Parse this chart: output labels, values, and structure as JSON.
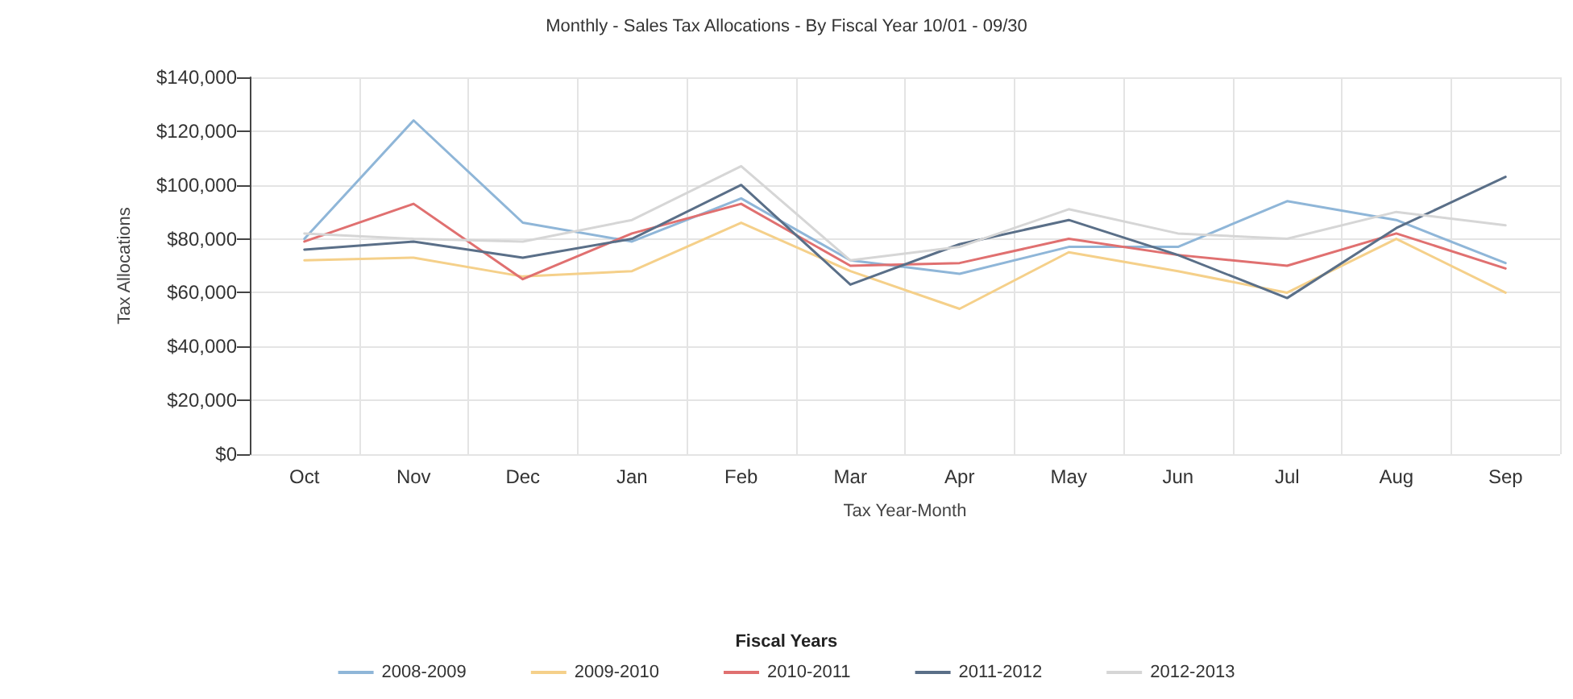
{
  "chart_data": {
    "type": "line",
    "title": "Monthly - Sales Tax Allocations - By Fiscal Year 10/01 - 09/30",
    "xlabel": "Tax Year-Month",
    "ylabel": "Tax Allocations",
    "legend_title": "Fiscal Years",
    "legend": "bottom",
    "grid": true,
    "marker": "none",
    "line_style": "solid",
    "categories": [
      "Oct",
      "Nov",
      "Dec",
      "Jan",
      "Feb",
      "Mar",
      "Apr",
      "May",
      "Jun",
      "Jul",
      "Aug",
      "Sep"
    ],
    "ylim": [
      0,
      140000
    ],
    "yticks": [
      {
        "value": 0,
        "label": "$0"
      },
      {
        "value": 20000,
        "label": "$20,000"
      },
      {
        "value": 40000,
        "label": "$40,000"
      },
      {
        "value": 60000,
        "label": "$60,000"
      },
      {
        "value": 80000,
        "label": "$80,000"
      },
      {
        "value": 100000,
        "label": "$100,000"
      },
      {
        "value": 120000,
        "label": "$120,000"
      },
      {
        "value": 140000,
        "label": "$140,000"
      }
    ],
    "series": [
      {
        "name": "2008-2009",
        "color": "#8fb6d8",
        "values": [
          80000,
          124000,
          86000,
          79000,
          95000,
          72000,
          67000,
          77000,
          77000,
          94000,
          87000,
          71000
        ]
      },
      {
        "name": "2009-2010",
        "color": "#f5d08a",
        "values": [
          72000,
          73000,
          66000,
          68000,
          86000,
          68000,
          54000,
          75000,
          68000,
          60000,
          80000,
          60000
        ]
      },
      {
        "name": "2010-2011",
        "color": "#e07070",
        "values": [
          79000,
          93000,
          65000,
          82000,
          93000,
          70000,
          71000,
          80000,
          74000,
          70000,
          82000,
          69000
        ]
      },
      {
        "name": "2011-2012",
        "color": "#5a6f88",
        "values": [
          76000,
          79000,
          73000,
          80000,
          100000,
          63000,
          78000,
          87000,
          74000,
          58000,
          84000,
          103000
        ]
      },
      {
        "name": "2012-2013",
        "color": "#d6d6d6",
        "values": [
          82000,
          80000,
          79000,
          87000,
          107000,
          72000,
          77000,
          91000,
          82000,
          80000,
          90000,
          85000
        ]
      }
    ]
  }
}
